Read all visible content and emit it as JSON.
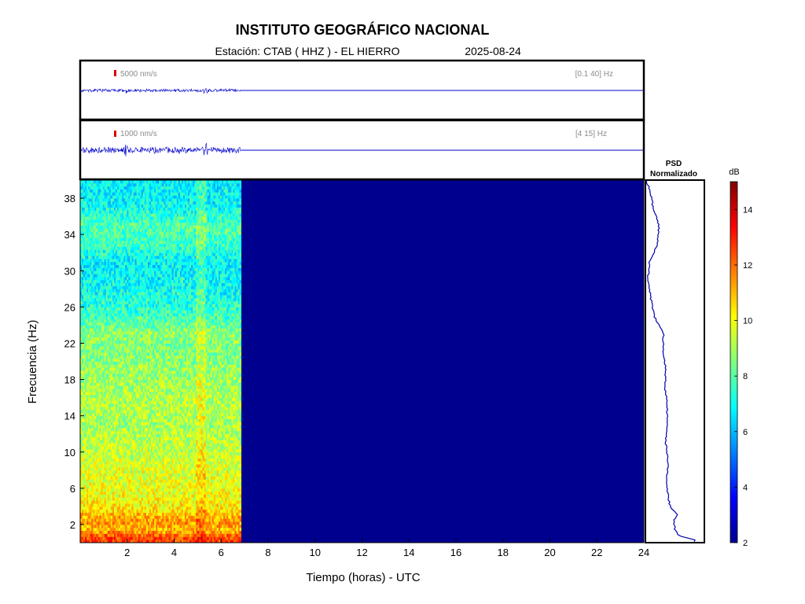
{
  "header": {
    "title": "INSTITUTO GEOGRÁFICO NACIONAL",
    "station_text": "Estación:  CTAB ( HHZ ) - EL HIERRO",
    "date": "2025-08-24"
  },
  "traces": [
    {
      "scale_label": "5000 nm/s",
      "band_label": "[0.1 40] Hz",
      "scale_color": "#dd0000",
      "trace_color": "#0000cc",
      "data_end_hour": 6.85
    },
    {
      "scale_label": "1000 nm/s",
      "band_label": "[4 15] Hz",
      "scale_color": "#dd0000",
      "trace_color": "#0000cc",
      "data_end_hour": 6.85
    }
  ],
  "psd": {
    "title_line1": "PSD",
    "title_line2": "Normalizado"
  },
  "colorbar": {
    "unit": "dB",
    "min": 2,
    "max": 15,
    "tick_labels": [
      "2",
      "4",
      "6",
      "8",
      "10",
      "12",
      "14"
    ],
    "colormap": "jet"
  },
  "chart_data": {
    "type": "heatmap",
    "xlabel": "Tiempo (horas) - UTC",
    "ylabel": "Frecuencia  (Hz)",
    "xlim": [
      0,
      24
    ],
    "ylim": [
      0,
      40
    ],
    "x_tick_labels": [
      "2",
      "4",
      "6",
      "8",
      "10",
      "12",
      "14",
      "16",
      "18",
      "20",
      "22",
      "24"
    ],
    "y_tick_labels": [
      "2",
      "6",
      "10",
      "14",
      "18",
      "22",
      "26",
      "30",
      "34",
      "38"
    ],
    "data_end_hour": 6.85,
    "background_value_db": 2,
    "freq_profile_db": [
      {
        "f": 0.5,
        "db": 12.5
      },
      {
        "f": 1.5,
        "db": 11.0
      },
      {
        "f": 2.5,
        "db": 11.5
      },
      {
        "f": 3.5,
        "db": 10.5
      },
      {
        "f": 5,
        "db": 10.0
      },
      {
        "f": 7,
        "db": 9.8
      },
      {
        "f": 9,
        "db": 9.5
      },
      {
        "f": 11,
        "db": 9.3
      },
      {
        "f": 13,
        "db": 9.0
      },
      {
        "f": 15,
        "db": 9.2
      },
      {
        "f": 17,
        "db": 9.0
      },
      {
        "f": 19,
        "db": 8.8
      },
      {
        "f": 21,
        "db": 8.5
      },
      {
        "f": 23,
        "db": 8.8
      },
      {
        "f": 25,
        "db": 7.6
      },
      {
        "f": 27,
        "db": 7.2
      },
      {
        "f": 29,
        "db": 6.9
      },
      {
        "f": 31,
        "db": 6.8
      },
      {
        "f": 33,
        "db": 7.7
      },
      {
        "f": 35,
        "db": 7.9
      },
      {
        "f": 37,
        "db": 7.0
      },
      {
        "f": 39,
        "db": 6.8
      }
    ],
    "psd_profile": [
      {
        "f": 0.3,
        "v": 0.85
      },
      {
        "f": 0.8,
        "v": 0.55
      },
      {
        "f": 1.5,
        "v": 0.5
      },
      {
        "f": 2.5,
        "v": 0.48
      },
      {
        "f": 3,
        "v": 0.55
      },
      {
        "f": 4,
        "v": 0.42
      },
      {
        "f": 5,
        "v": 0.38
      },
      {
        "f": 7,
        "v": 0.36
      },
      {
        "f": 9,
        "v": 0.38
      },
      {
        "f": 11,
        "v": 0.34
      },
      {
        "f": 13,
        "v": 0.36
      },
      {
        "f": 15,
        "v": 0.37
      },
      {
        "f": 17,
        "v": 0.33
      },
      {
        "f": 19,
        "v": 0.34
      },
      {
        "f": 21,
        "v": 0.3
      },
      {
        "f": 23,
        "v": 0.3
      },
      {
        "f": 25,
        "v": 0.14
      },
      {
        "f": 27,
        "v": 0.08
      },
      {
        "f": 29,
        "v": 0.03
      },
      {
        "f": 31,
        "v": 0.06
      },
      {
        "f": 33,
        "v": 0.2
      },
      {
        "f": 35,
        "v": 0.22
      },
      {
        "f": 37,
        "v": 0.12
      },
      {
        "f": 39,
        "v": 0.06
      },
      {
        "f": 40,
        "v": 0.0
      }
    ]
  }
}
